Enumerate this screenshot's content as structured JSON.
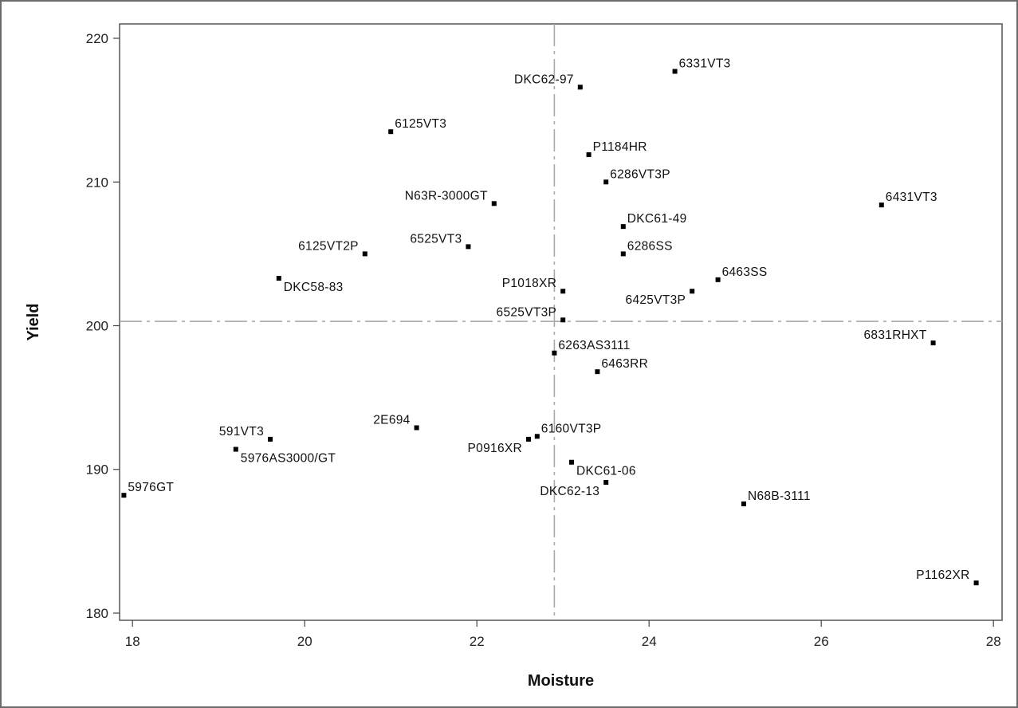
{
  "chart_data": {
    "type": "scatter",
    "title": "",
    "xlabel": "Moisture",
    "ylabel": "Yield",
    "xlim": [
      17.85,
      28.1
    ],
    "ylim": [
      179.5,
      221.0
    ],
    "xticks": [
      18,
      20,
      22,
      24,
      26,
      28
    ],
    "yticks": [
      180,
      190,
      200,
      210,
      220
    ],
    "reference_lines": {
      "x": 22.9,
      "y": 200.3
    },
    "grid": false,
    "points": [
      {
        "label": "6331VT3",
        "x": 24.3,
        "y": 217.7,
        "pos": "right"
      },
      {
        "label": "DKC62-97",
        "x": 23.2,
        "y": 216.6,
        "pos": "left"
      },
      {
        "label": "6125VT3",
        "x": 21.0,
        "y": 213.5,
        "pos": "right"
      },
      {
        "label": "P1184HR",
        "x": 23.3,
        "y": 211.9,
        "pos": "right"
      },
      {
        "label": "6286VT3P",
        "x": 23.5,
        "y": 210.0,
        "pos": "right"
      },
      {
        "label": "N63R-3000GT",
        "x": 22.2,
        "y": 208.5,
        "pos": "left"
      },
      {
        "label": "6431VT3",
        "x": 26.7,
        "y": 208.4,
        "pos": "right"
      },
      {
        "label": "DKC61-49",
        "x": 23.7,
        "y": 206.9,
        "pos": "right"
      },
      {
        "label": "6525VT3",
        "x": 21.9,
        "y": 205.5,
        "pos": "left"
      },
      {
        "label": "6125VT2P",
        "x": 20.7,
        "y": 205.0,
        "pos": "left"
      },
      {
        "label": "6286SS",
        "x": 23.7,
        "y": 205.0,
        "pos": "right"
      },
      {
        "label": "DKC58-83",
        "x": 19.7,
        "y": 203.3,
        "pos": "below-right"
      },
      {
        "label": "6463SS",
        "x": 24.8,
        "y": 203.2,
        "pos": "right"
      },
      {
        "label": "P1018XR",
        "x": 23.0,
        "y": 202.4,
        "pos": "left"
      },
      {
        "label": "6425VT3P",
        "x": 24.5,
        "y": 202.4,
        "pos": "below-left"
      },
      {
        "label": "6525VT3P",
        "x": 23.0,
        "y": 200.4,
        "pos": "left"
      },
      {
        "label": "6831RHXT",
        "x": 27.3,
        "y": 198.8,
        "pos": "left"
      },
      {
        "label": "6263AS3111",
        "x": 22.9,
        "y": 198.1,
        "pos": "right"
      },
      {
        "label": "6463RR",
        "x": 23.4,
        "y": 196.8,
        "pos": "right"
      },
      {
        "label": "2E694",
        "x": 21.3,
        "y": 192.9,
        "pos": "left"
      },
      {
        "label": "6160VT3P",
        "x": 22.7,
        "y": 192.3,
        "pos": "right"
      },
      {
        "label": "591VT3",
        "x": 19.6,
        "y": 192.1,
        "pos": "left"
      },
      {
        "label": "P0916XR",
        "x": 22.6,
        "y": 192.1,
        "pos": "below-left"
      },
      {
        "label": "5976AS3000/GT",
        "x": 19.2,
        "y": 191.4,
        "pos": "below-right"
      },
      {
        "label": "DKC61-06",
        "x": 23.1,
        "y": 190.5,
        "pos": "below-right"
      },
      {
        "label": "DKC62-13",
        "x": 23.5,
        "y": 189.1,
        "pos": "below-left"
      },
      {
        "label": "5976GT",
        "x": 17.9,
        "y": 188.2,
        "pos": "right"
      },
      {
        "label": "N68B-3111",
        "x": 25.1,
        "y": 187.6,
        "pos": "right"
      },
      {
        "label": "P1162XR",
        "x": 27.8,
        "y": 182.1,
        "pos": "left"
      }
    ]
  }
}
